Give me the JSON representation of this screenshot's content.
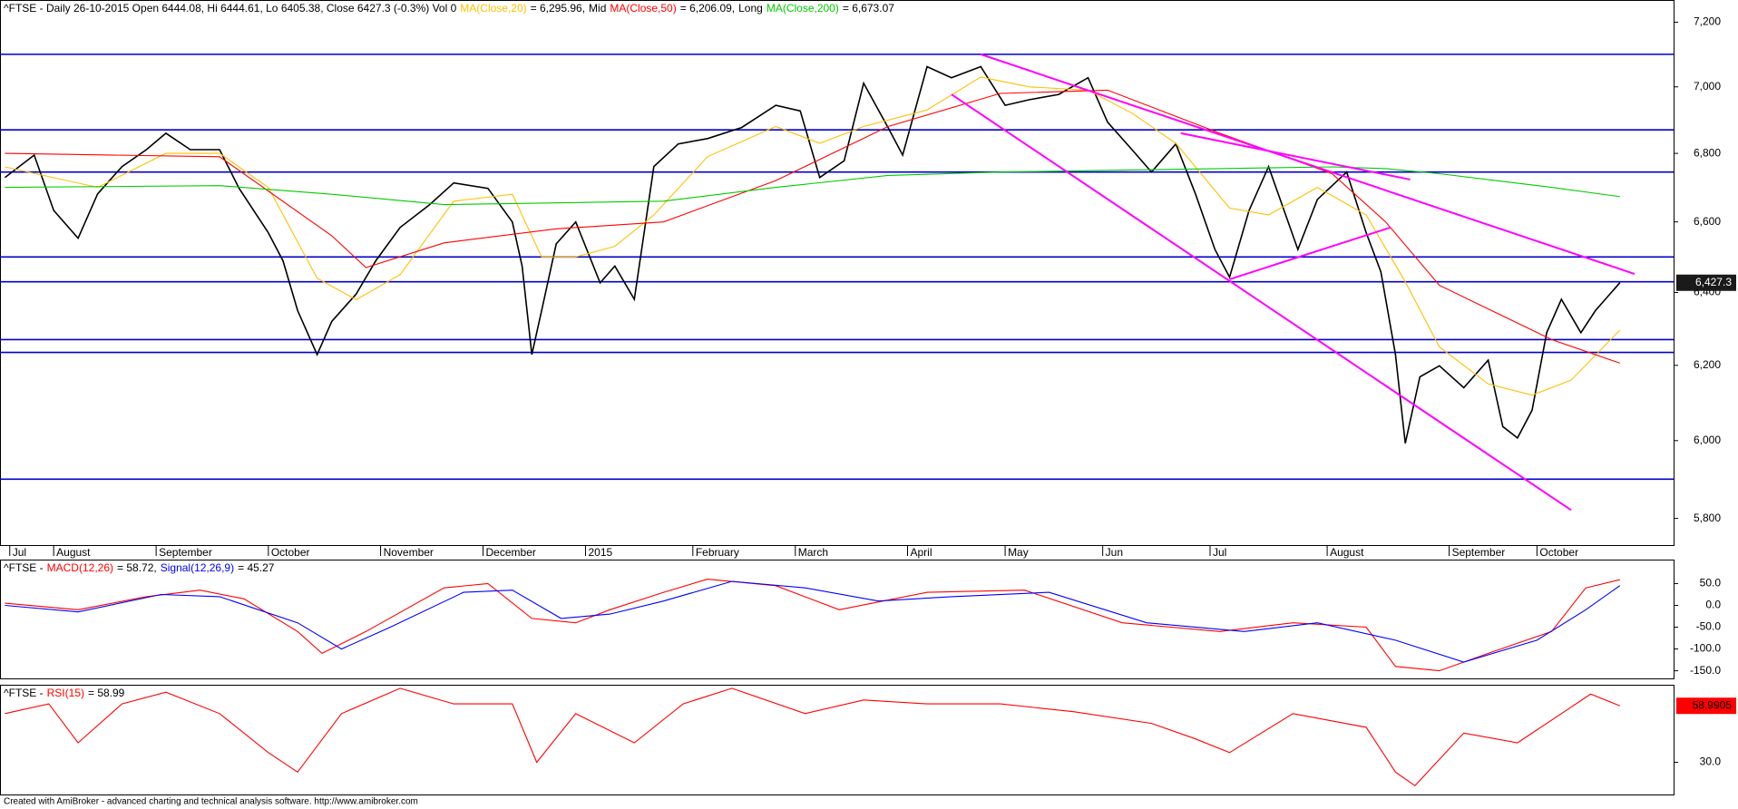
{
  "chart_data": [
    {
      "type": "line",
      "title": "^FTSE - Daily 26-10-2015 Open 6444.08, Hi 6444.61, Lo 6405.38, Close 6427.3 (-0.3%) Vol 0",
      "log": true,
      "ylim": [
        5733,
        7270
      ],
      "yticks": [
        {
          "value": 5800,
          "label": "5,800"
        },
        {
          "value": 6000,
          "label": "6,000"
        },
        {
          "value": 6200,
          "label": "6,200"
        },
        {
          "value": 6400,
          "label": "6,400"
        },
        {
          "value": 6600,
          "label": "6,600"
        },
        {
          "value": 6800,
          "label": "6,800"
        },
        {
          "value": 7000,
          "label": "7,000"
        },
        {
          "value": 7200,
          "label": "7,200"
        }
      ],
      "xlim": [
        0,
        343
      ],
      "xticks": [
        {
          "value": 2,
          "label": "Jul"
        },
        {
          "value": 11,
          "label": "August"
        },
        {
          "value": 32,
          "label": "September"
        },
        {
          "value": 55,
          "label": "October"
        },
        {
          "value": 78,
          "label": "November"
        },
        {
          "value": 99,
          "label": "December"
        },
        {
          "value": 120,
          "label": "2015"
        },
        {
          "value": 142,
          "label": "February"
        },
        {
          "value": 163,
          "label": "March"
        },
        {
          "value": 186,
          "label": "April"
        },
        {
          "value": 206,
          "label": "May"
        },
        {
          "value": 226,
          "label": "Jun"
        },
        {
          "value": 248,
          "label": "Jul"
        },
        {
          "value": 272,
          "label": "August"
        },
        {
          "value": 297,
          "label": "September"
        },
        {
          "value": 315,
          "label": "October"
        }
      ],
      "series": [
        {
          "color": "#000000",
          "x": [
            1,
            7,
            11,
            16,
            20,
            25,
            30,
            34,
            39,
            45,
            49,
            55,
            58,
            61,
            65,
            68,
            73,
            77,
            82,
            88,
            93,
            100,
            105,
            107,
            109,
            111,
            114,
            118,
            123,
            126,
            130,
            134,
            139,
            145,
            152,
            159,
            164,
            168,
            173,
            177,
            182,
            185,
            190,
            195,
            201,
            206,
            211,
            217,
            223,
            227,
            232,
            236,
            241,
            245,
            249,
            252,
            256,
            260,
            266,
            270,
            276,
            280,
            283,
            286,
            288,
            291,
            295,
            300,
            305,
            308,
            311,
            314,
            317,
            320,
            324,
            327,
            332
          ],
          "values": [
            6729,
            6795,
            6633,
            6553,
            6681,
            6761,
            6811,
            6860,
            6811,
            6811,
            6697,
            6569,
            6489,
            6350,
            6229,
            6320,
            6396,
            6489,
            6584,
            6649,
            6713,
            6697,
            6600,
            6474,
            6229,
            6350,
            6537,
            6600,
            6427,
            6474,
            6381,
            6761,
            6828,
            6844,
            6877,
            6944,
            6927,
            6729,
            6778,
            7011,
            6877,
            6795,
            7062,
            7028,
            7062,
            6944,
            6961,
            6977,
            7028,
            6893,
            6811,
            6745,
            6828,
            6681,
            6521,
            6443,
            6633,
            6761,
            6521,
            6665,
            6745,
            6569,
            6458,
            6229,
            5993,
            6169,
            6199,
            6140,
            6214,
            6037,
            6007,
            6080,
            6289,
            6381,
            6289,
            6350,
            6427.3
          ]
        },
        {
          "name": "MA(Close,20)",
          "legend_value": "= 6,295.96,",
          "color": "#ffc000",
          "x": [
            1,
            20,
            34,
            45,
            55,
            65,
            73,
            82,
            93,
            105,
            111,
            118,
            126,
            134,
            145,
            159,
            168,
            177,
            190,
            201,
            211,
            223,
            232,
            241,
            252,
            260,
            270,
            280,
            288,
            295,
            305,
            314,
            322,
            332
          ],
          "values": [
            6760,
            6700,
            6800,
            6800,
            6700,
            6440,
            6380,
            6450,
            6660,
            6680,
            6500,
            6500,
            6530,
            6620,
            6790,
            6880,
            6830,
            6880,
            6930,
            7030,
            7000,
            6990,
            6920,
            6830,
            6640,
            6620,
            6700,
            6620,
            6430,
            6250,
            6150,
            6120,
            6160,
            6295.96
          ]
        },
        {
          "name": "MA(Close,50)",
          "legend_prefix": "Mid",
          "legend_value": "= 6,206.09,",
          "color": "#ff0000",
          "x": [
            1,
            45,
            68,
            75,
            91,
            114,
            136,
            159,
            182,
            205,
            227,
            250,
            273,
            284,
            295,
            318,
            332
          ],
          "values": [
            6800,
            6790,
            6560,
            6470,
            6540,
            6580,
            6600,
            6720,
            6880,
            6980,
            6990,
            6860,
            6740,
            6600,
            6420,
            6270,
            6206.09
          ]
        },
        {
          "name": "MA(Close,200)",
          "legend_prefix": "Long",
          "legend_value": "= 6,673.07",
          "color": "#00cc00",
          "x": [
            1,
            45,
            68,
            91,
            114,
            136,
            159,
            182,
            205,
            227,
            250,
            273,
            284,
            295,
            318,
            332
          ],
          "values": [
            6700,
            6705,
            6680,
            6650,
            6655,
            6660,
            6700,
            6735,
            6745,
            6750,
            6755,
            6760,
            6755,
            6740,
            6700,
            6673.07
          ]
        }
      ],
      "hlines": {
        "color": "#0000cc",
        "values": [
          7100,
          6870,
          6745,
          6500,
          6430,
          6270,
          6235,
          5900
        ]
      },
      "trendlines": {
        "color": "#ff00ff",
        "segments": [
          {
            "x": [
              201,
              335
            ],
            "values": [
              7100,
              6452
            ]
          },
          {
            "x": [
              195,
              322
            ],
            "values": [
              6977,
              5821
            ]
          },
          {
            "x": [
              242,
              289
            ],
            "values": [
              6860,
              6723
            ]
          },
          {
            "x": [
              252,
              285
            ],
            "values": [
              6437,
              6584
            ]
          }
        ]
      },
      "last_label": {
        "value": 6427.3,
        "label": "6,427.3",
        "color": "#1a1a1a",
        "text_color": "#ffffff"
      }
    },
    {
      "type": "line",
      "title": "^FTSE -",
      "ylim": [
        -167.5,
        105
      ],
      "yticks": [
        {
          "value": 50,
          "label": "50.0"
        },
        {
          "value": 0,
          "label": "0.0"
        },
        {
          "value": -50,
          "label": "-50.0"
        },
        {
          "value": -100,
          "label": "-100.0"
        },
        {
          "value": -150,
          "label": "-150.0"
        }
      ],
      "xlim": [
        0,
        343
      ],
      "series": [
        {
          "name": "MACD(12,26)",
          "legend_value": "= 58.72,",
          "color": "#ff0000",
          "x": [
            1,
            16,
            30,
            41,
            50,
            61,
            66,
            75,
            91,
            100,
            109,
            118,
            125,
            136,
            145,
            159,
            172,
            190,
            210,
            230,
            250,
            265,
            280,
            286,
            295,
            305,
            318,
            325,
            332
          ],
          "values": [
            5,
            -10,
            20,
            35,
            15,
            -60,
            -110,
            -60,
            40,
            50,
            -30,
            -40,
            -10,
            30,
            60,
            45,
            -10,
            30,
            35,
            -40,
            -60,
            -40,
            -50,
            -140,
            -150,
            -110,
            -60,
            40,
            58.72
          ]
        },
        {
          "name": "Signal(12,26,9)",
          "legend_value": "= 45.27",
          "color": "#0000ff",
          "x": [
            1,
            16,
            33,
            45,
            61,
            70,
            80,
            95,
            105,
            115,
            125,
            136,
            150,
            165,
            180,
            195,
            215,
            235,
            255,
            270,
            286,
            300,
            315,
            325,
            332
          ],
          "values": [
            0,
            -15,
            25,
            20,
            -40,
            -100,
            -50,
            30,
            35,
            -30,
            -20,
            10,
            55,
            40,
            10,
            20,
            30,
            -40,
            -60,
            -40,
            -80,
            -130,
            -80,
            -10,
            45.27
          ]
        }
      ]
    },
    {
      "type": "line",
      "title": "^FTSE -",
      "ylim": [
        13.5,
        69.8
      ],
      "yticks": [
        {
          "value": 30,
          "label": "30.0"
        }
      ],
      "xlim": [
        0,
        343
      ],
      "series": [
        {
          "name": "RSI(15)",
          "legend_value": "= 58.99",
          "color": "#ff0000",
          "x": [
            1,
            10,
            16,
            25,
            34,
            45,
            55,
            61,
            70,
            82,
            93,
            105,
            110,
            118,
            130,
            140,
            150,
            165,
            177,
            190,
            205,
            220,
            236,
            245,
            252,
            265,
            280,
            286,
            290,
            300,
            311,
            320,
            326,
            332
          ],
          "values": [
            55,
            60,
            40,
            60,
            66,
            55,
            35,
            25,
            55,
            68,
            60,
            60,
            30,
            55,
            40,
            60,
            68,
            55,
            62,
            60,
            60,
            56,
            50,
            42,
            35,
            55,
            48,
            25,
            18,
            45,
            40,
            55,
            65,
            58.99
          ]
        }
      ],
      "last_label": {
        "value": 58.9905,
        "label": "58.9905",
        "color": "#ff0000",
        "text_color": "#000000"
      }
    }
  ],
  "footer": "Created with AmiBroker - advanced charting and technical analysis software. http://www.amibroker.com"
}
